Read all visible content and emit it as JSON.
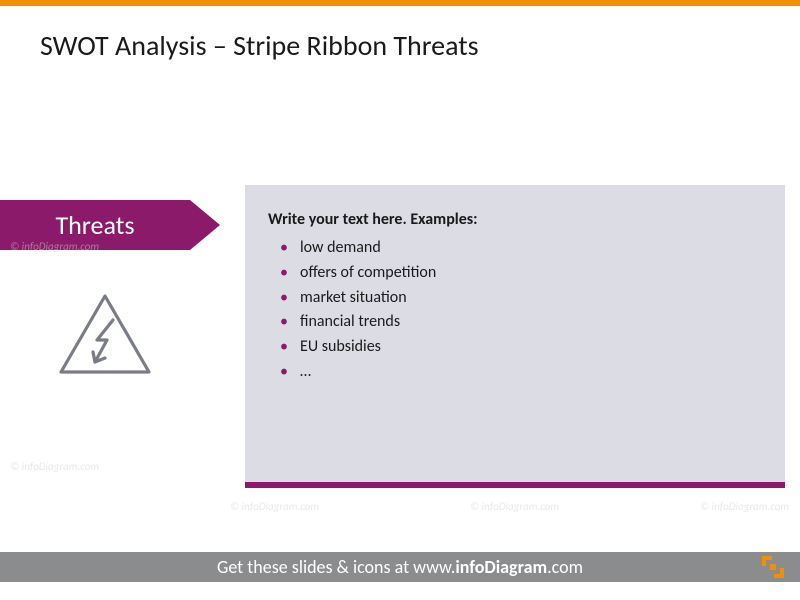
{
  "colors": {
    "top_bar": "#f29100",
    "background": "#ffffff",
    "panel_bg": "#dcdde4",
    "ribbon": "#8b1a6b",
    "ribbon_text": "#ffffff",
    "accent_underline": "#8b1a6b",
    "title_text": "#1a1a1a",
    "body_text": "#1a1a1a",
    "bullet_marker": "#8b1a6b",
    "icon_stroke": "#7a7d85",
    "watermark": "#d3d3d3",
    "footer_bg": "#8a8c8e",
    "footer_text": "#ffffff",
    "logo": "#f29100"
  },
  "title": "SWOT Analysis – Stripe Ribbon Threats",
  "ribbon": {
    "label": "Threats"
  },
  "content": {
    "heading": "Write your text here. Examples:",
    "bullets": [
      "low demand",
      "offers of competition",
      "market situation",
      "financial trends",
      "EU subsidies",
      " …"
    ]
  },
  "icon": {
    "name": "threat-triangle-lightning"
  },
  "watermark_text": "© infoDiagram.com",
  "footer": {
    "prefix": "Get these slides & icons at www.",
    "bold": "infoDiagram",
    "suffix": ".com"
  }
}
